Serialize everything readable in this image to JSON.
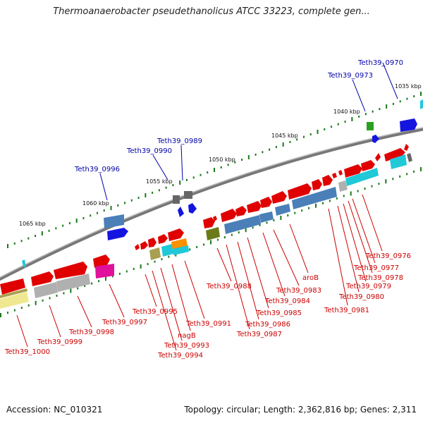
{
  "title": "Thermoanaerobacter pseudethanolicus ATCC 33223, complete gen...",
  "footer": {
    "accession": "Accession: NC_010321",
    "topology": "Topology: circular; Length: 2,362,816 bp; Genes: 2,311"
  },
  "ruler": [
    "1035 kbp",
    "1040 kbp",
    "1045 kbp",
    "1050 kbp",
    "1055 kbp",
    "1060 kbp",
    "1065 kbp"
  ],
  "top_labels": [
    "Teth39_0970",
    "Teth39_0973",
    "Teth39_0989",
    "Teth39_0990",
    "Teth39_0996"
  ],
  "bottom_labels": [
    "Teth39_0976",
    "Teth39_0977",
    "Teth39_0978",
    "Teth39_0979",
    "Teth39_0980",
    "Teth39_0981",
    "aroB",
    "Teth39_0983",
    "Teth39_0984",
    "Teth39_0985",
    "Teth39_0986",
    "Teth39_0987",
    "Teth39_0988",
    "Teth39_0991",
    "nagB",
    "Teth39_0993",
    "Teth39_0994",
    "Teth39_0995",
    "Teth39_0997",
    "Teth39_0998",
    "Teth39_0999",
    "Teth39_1000"
  ],
  "colors": {
    "red": "#e00000",
    "blue": "#1515e0",
    "steel": "#4a7fb8",
    "gray": "#b0b0b0",
    "cyan": "#20c8d8",
    "line": "#888888"
  }
}
